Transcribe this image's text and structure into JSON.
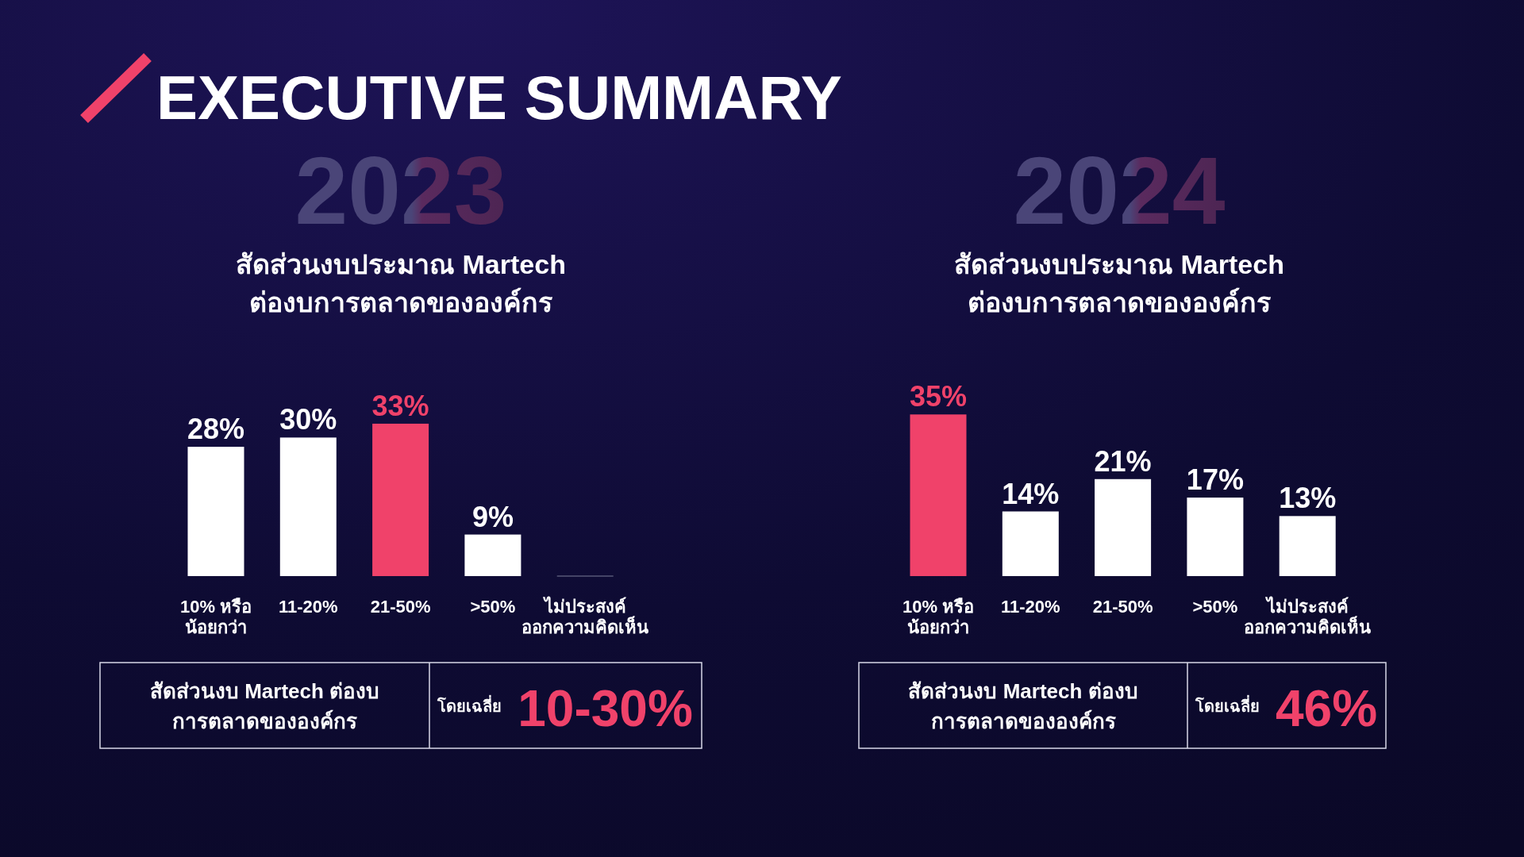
{
  "chart_data": [
    {
      "type": "bar",
      "title": "สัดส่วนงบประมาณ Martech\nต่องบการตลาดขององค์กร",
      "subtitle": "2023",
      "categories": [
        "10% หรือ\nน้อยกว่า",
        "11-20%",
        "21-50%",
        ">50%",
        "ไม่ประสงค์\nออกความคิดเห็น"
      ],
      "values": [
        28,
        30,
        33,
        9,
        0
      ],
      "colors": [
        "#ffffff",
        "#ffffff",
        "#f0426a",
        "#ffffff",
        "#ffffff"
      ],
      "value_labels": [
        "28%",
        "30%",
        "33%",
        "9%",
        null
      ],
      "relative": false,
      "annotations": [
        "สัดส่วนงบ Martech ต่องบ\nการตลาดขององค์กร",
        "โดยเฉลี่ย",
        "10-30%",
        "EXECUTIVE SUMMARY"
      ]
    },
    {
      "type": "bar",
      "title": "สัดส่วนงบประมาณ Martech\nต่องบการตลาดขององค์กร",
      "subtitle": "2024",
      "categories": [
        "10% หรือ\nน้อยกว่า",
        "11-20%",
        "21-50%",
        ">50%",
        "ไม่ประสงค์\nออกความคิดเห็น"
      ],
      "values": [
        35,
        14,
        21,
        17,
        13
      ],
      "colors": [
        "#f0426a",
        "#ffffff",
        "#ffffff",
        "#ffffff",
        "#ffffff"
      ],
      "value_labels": [
        "35%",
        "14%",
        "21%",
        "17%",
        "13%"
      ],
      "relative": false,
      "annotations": [
        "สัดส่วนงบ Martech ต่องบ\nการตลาดขององค์กร",
        "โดยเฉลี่ย",
        "46%"
      ]
    }
  ]
}
